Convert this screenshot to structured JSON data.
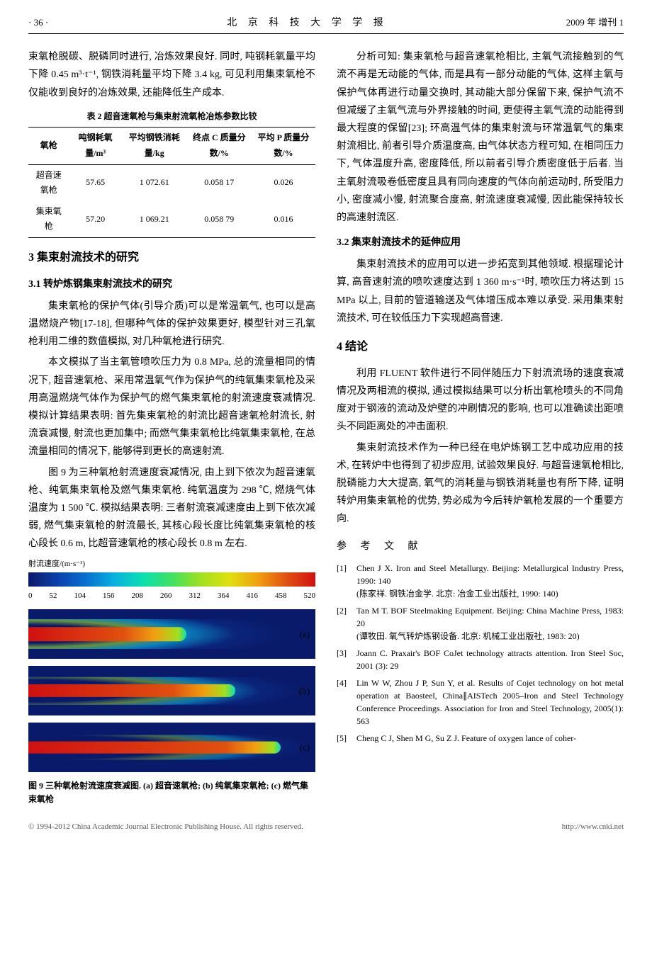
{
  "header": {
    "page": "· 36 ·",
    "journal": "北 京 科 技 大 学 学 报",
    "issue": "2009 年 增刊 1"
  },
  "col1": {
    "p1": "束氧枪脱碳、脱磷同时进行, 冶炼效果良好. 同时, 吨钢耗氧量平均下降 0.45 m³·t⁻¹, 钢铁消耗量平均下降 3.4 kg, 可见利用集束氧枪不仅能收到良好的冶炼效果, 还能降低生产成本.",
    "table2": {
      "caption": "表 2  超音速氧枪与集束射流氧枪冶炼参数比较",
      "headers": [
        "氧枪",
        "吨钢耗氧量/m³",
        "平均钢铁消耗量/kg",
        "终点 C 质量分数/%",
        "平均 P 质量分数/%"
      ],
      "rows": [
        [
          "超音速氧枪",
          "57.65",
          "1 072.61",
          "0.058 17",
          "0.026"
        ],
        [
          "集束氧枪",
          "57.20",
          "1 069.21",
          "0.058 79",
          "0.016"
        ]
      ]
    },
    "h2_3": "3  集束射流技术的研究",
    "h3_31": "3.1  转炉炼钢集束射流技术的研究",
    "p31a": "集束氧枪的保护气体(引导介质)可以是常温氧气, 也可以是高温燃烧产物[17-18], 但哪种气体的保护效果更好, 模型针对三孔氧枪利用二维的数值模拟, 对几种氧枪进行研究.",
    "p31b": "本文模拟了当主氧管喷吹压力为 0.8 MPa, 总的流量相同的情况下, 超音速氧枪、采用常温氧气作为保护气的纯氧集束氧枪及采用高温燃烧气体作为保护气的燃气集束氧枪的射流速度衰减情况. 模拟计算结果表明: 首先集束氧枪的射流比超音速氧枪射流长, 射流衰减慢, 射流也更加集中; 而燃气集束氧枪比纯氧集束氧枪, 在总流量相同的情况下, 能够得到更长的高速射流.",
    "p31c": "图 9 为三种氧枪射流速度衰减情况, 由上到下依次为超音速氧枪、纯氧集束氧枪及燃气集束氧枪. 纯氧温度为 298 ℃, 燃烧气体温度为 1 500 ℃. 模拟结果表明: 三者射流衰减速度由上到下依次减弱, 燃气集束氧枪的射流最长, 其核心段长度比纯氧集束氧枪的核心段长 0.6 m, 比超音速氧枪的核心段长 0.8 m 左右.",
    "fig9": {
      "axis_label": "射流速度/(m·s⁻¹)",
      "ticks": [
        "0",
        "52",
        "104",
        "156",
        "208",
        "260",
        "312",
        "364",
        "416",
        "458",
        "520"
      ],
      "panel_labels": [
        "(a)",
        "(b)",
        "(c)"
      ],
      "caption": "图 9  三种氧枪射流速度衰减图. (a) 超音速氧枪; (b) 纯氧集束氧枪; (c) 燃气集束氧枪"
    }
  },
  "col2": {
    "p_analysis": "分析可知: 集束氧枪与超音速氧枪相比, 主氧气流接触到的气流不再是无动能的气体, 而是具有一部分动能的气体, 这样主氧与保护气体再进行动量交换时, 其动能大部分保留下来, 保护气流不但减缓了主氧气流与外界接触的时间, 更使得主氧气流的动能得到最大程度的保留[23]; 环高温气体的集束射流与环常温氧气的集束射流相比, 前者引导介质温度高, 由气体状态方程可知, 在相同压力下, 气体温度升高, 密度降低, 所以前者引导介质密度低于后者. 当主氧射流吸卷低密度且具有同向速度的气体向前运动时, 所受阻力小, 密度减小慢, 射流聚合度高, 射流速度衰减慢, 因此能保持较长的高速射流区.",
    "h3_32": "3.2  集束射流技术的延伸应用",
    "p32": "集束射流技术的应用可以进一步拓宽到其他领域. 根据理论计算, 高音速射流的喷吹速度达到 1 360 m·s⁻¹时, 喷吹压力将达到 15 MPa 以上, 目前的管道输送及气体增压成本难以承受. 采用集束射流技术, 可在较低压力下实现超高音速.",
    "h2_4": "4  结论",
    "p4a": "利用 FLUENT 软件进行不同伴随压力下射流流场的速度衰减情况及两相流的模拟, 通过模拟结果可以分析出氧枪喷头的不同角度对于钢液的流动及炉壁的冲刷情况的影响, 也可以准确读出距喷头不同距离处的冲击面积.",
    "p4b": "集束射流技术作为一种已经在电炉炼钢工艺中成功应用的技术, 在转炉中也得到了初步应用, 试验效果良好. 与超音速氧枪相比, 脱磷能力大大提高, 氧气的消耗量与钢铁消耗量也有所下降, 证明转炉用集束氧枪的优势, 势必成为今后转炉氧枪发展的一个重要方向.",
    "refs_title": "参 考 文 献",
    "refs": [
      {
        "num": "[1]",
        "en": "Chen J X. Iron and Steel Metallurgy. Beijing: Metallurgical Industry Press, 1990: 140",
        "cn": "(陈家祥. 钢铁冶金学. 北京: 冶金工业出版社, 1990: 140)"
      },
      {
        "num": "[2]",
        "en": "Tan M T. BOF Steelmaking Equipment. Beijing: China Machine Press, 1983: 20",
        "cn": "(谭牧田. 氧气转炉炼钢设备. 北京: 机械工业出版社, 1983: 20)"
      },
      {
        "num": "[3]",
        "en": "Joann C. Praxair's BOF CoJet technology attracts attention. Iron Steel Soc, 2001 (3): 29",
        "cn": ""
      },
      {
        "num": "[4]",
        "en": "Lin W W, Zhou J P, Sun Y, et al. Results of Cojet technology on hot metal operation at Baosteel, China∥AISTech 2005–Iron and Steel Technology Conference Proceedings. Association for Iron and Steel Technology, 2005(1): 563",
        "cn": ""
      },
      {
        "num": "[5]",
        "en": "Cheng C J, Shen M G, Su Z J. Feature of oxygen lance of coher-",
        "cn": ""
      }
    ]
  },
  "footer": {
    "left": "© 1994-2012 China Academic Journal Electronic Publishing House. All rights reserved.",
    "right": "http://www.cnki.net"
  }
}
